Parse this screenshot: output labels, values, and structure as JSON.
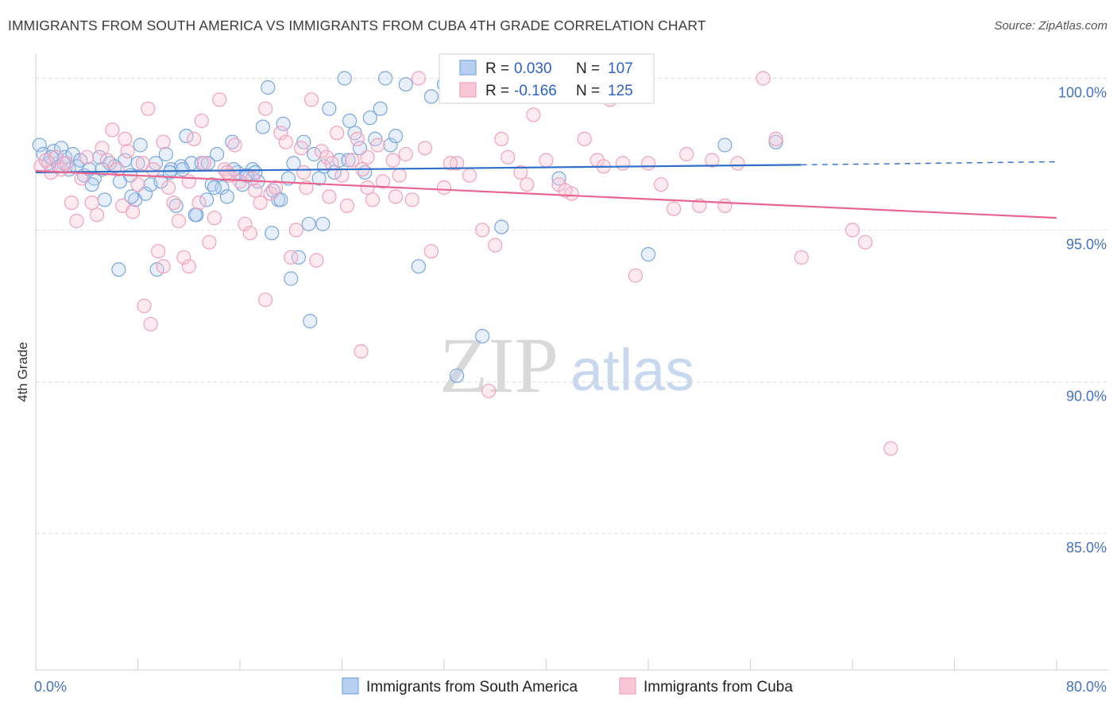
{
  "header": {
    "title": "IMMIGRANTS FROM SOUTH AMERICA VS IMMIGRANTS FROM CUBA 4TH GRADE CORRELATION CHART",
    "source": "Source: ZipAtlas.com"
  },
  "watermark": {
    "zip": "ZIP",
    "atlas": "atlas"
  },
  "chart_data": {
    "type": "scatter",
    "ylabel": "4th Grade",
    "xlim": [
      0,
      80
    ],
    "ylim": [
      80.5,
      100.8
    ],
    "x_tick_labels": [
      "0.0%",
      "80.0%"
    ],
    "y_ticks": [
      {
        "value": 100,
        "label": "100.0%"
      },
      {
        "value": 95,
        "label": "95.0%"
      },
      {
        "value": 90,
        "label": "90.0%"
      },
      {
        "value": 85,
        "label": "85.0%"
      }
    ],
    "grid": "horizontal-dashed",
    "legend_position": "top-center",
    "series": [
      {
        "name": "Immigrants from South America",
        "color": "#7aa7e0",
        "line_color": "#2f6ec9",
        "stats": {
          "r_label": "R =",
          "r": "0.030",
          "n_label": "N =",
          "n": "107"
        },
        "trend": {
          "x_start": 0,
          "y_start": 96.9,
          "x_solid_end": 60,
          "y_solid_end": 97.15,
          "x_end": 80,
          "y_end": 97.25
        },
        "points": [
          [
            0.3,
            97.8
          ],
          [
            0.6,
            97.5
          ],
          [
            1.0,
            97.2
          ],
          [
            1.4,
            97.6
          ],
          [
            1.8,
            97.1
          ],
          [
            2.0,
            97.7
          ],
          [
            2.3,
            97.4
          ],
          [
            2.6,
            97.0
          ],
          [
            2.9,
            97.5
          ],
          [
            3.2,
            97.1
          ],
          [
            3.5,
            97.3
          ],
          [
            3.8,
            96.8
          ],
          [
            4.2,
            97.0
          ],
          [
            4.6,
            96.7
          ],
          [
            5.0,
            97.4
          ],
          [
            5.4,
            96.0
          ],
          [
            5.8,
            97.2
          ],
          [
            6.2,
            97.1
          ],
          [
            6.6,
            96.6
          ],
          [
            7.0,
            97.3
          ],
          [
            7.4,
            96.8
          ],
          [
            7.8,
            96.0
          ],
          [
            8.2,
            97.8
          ],
          [
            8.6,
            96.2
          ],
          [
            9.0,
            96.5
          ],
          [
            9.4,
            97.2
          ],
          [
            9.8,
            96.6
          ],
          [
            10.2,
            97.5
          ],
          [
            10.6,
            97.0
          ],
          [
            11.0,
            95.8
          ],
          [
            11.4,
            97.1
          ],
          [
            11.8,
            98.1
          ],
          [
            12.2,
            97.2
          ],
          [
            12.6,
            95.5
          ],
          [
            13.0,
            97.2
          ],
          [
            13.4,
            96.0
          ],
          [
            13.8,
            96.5
          ],
          [
            14.2,
            97.5
          ],
          [
            14.6,
            96.4
          ],
          [
            15.0,
            96.1
          ],
          [
            15.4,
            97.9
          ],
          [
            15.8,
            96.9
          ],
          [
            16.2,
            96.5
          ],
          [
            16.6,
            96.8
          ],
          [
            17.0,
            97.0
          ],
          [
            17.4,
            96.6
          ],
          [
            17.8,
            98.4
          ],
          [
            18.2,
            99.7
          ],
          [
            18.6,
            96.3
          ],
          [
            19.0,
            96.0
          ],
          [
            19.4,
            98.5
          ],
          [
            19.8,
            96.7
          ],
          [
            20.2,
            97.2
          ],
          [
            20.6,
            94.1
          ],
          [
            21.0,
            97.9
          ],
          [
            21.4,
            95.2
          ],
          [
            21.8,
            97.5
          ],
          [
            22.2,
            96.7
          ],
          [
            22.6,
            97.1
          ],
          [
            23.0,
            99.0
          ],
          [
            23.4,
            96.9
          ],
          [
            23.8,
            97.3
          ],
          [
            24.2,
            100.0
          ],
          [
            24.6,
            98.6
          ],
          [
            25.0,
            98.2
          ],
          [
            25.4,
            97.7
          ],
          [
            25.8,
            96.9
          ],
          [
            26.2,
            98.7
          ],
          [
            26.6,
            98.0
          ],
          [
            27.0,
            99.0
          ],
          [
            27.4,
            100.0
          ],
          [
            27.8,
            97.8
          ],
          [
            28.2,
            98.1
          ],
          [
            29.0,
            99.8
          ],
          [
            30.0,
            93.8
          ],
          [
            31.0,
            99.4
          ],
          [
            32.0,
            99.8
          ],
          [
            33.0,
            90.2
          ],
          [
            34.0,
            99.6
          ],
          [
            35.0,
            91.5
          ],
          [
            36.5,
            95.1
          ],
          [
            41.0,
            96.7
          ],
          [
            48.0,
            94.2
          ],
          [
            54.0,
            97.8
          ],
          [
            58.0,
            97.9
          ],
          [
            6.5,
            93.7
          ],
          [
            12.5,
            95.5
          ],
          [
            18.5,
            94.9
          ],
          [
            20.0,
            93.4
          ],
          [
            21.5,
            92.0
          ],
          [
            9.5,
            93.7
          ],
          [
            15.5,
            97.0
          ],
          [
            19.2,
            96.0
          ],
          [
            22.5,
            95.2
          ],
          [
            24.5,
            97.3
          ],
          [
            16.5,
            96.8
          ],
          [
            13.5,
            97.2
          ],
          [
            7.5,
            96.1
          ],
          [
            10.5,
            96.9
          ],
          [
            4.4,
            96.5
          ],
          [
            2.2,
            97.2
          ],
          [
            1.2,
            97.4
          ],
          [
            5.2,
            97.0
          ],
          [
            8.0,
            97.2
          ],
          [
            11.5,
            97.0
          ],
          [
            14.0,
            96.4
          ],
          [
            17.2,
            96.9
          ]
        ]
      },
      {
        "name": "Immigrants from Cuba",
        "color": "#f2a1bb",
        "line_color": "#e8658f",
        "stats": {
          "r_label": "R =",
          "r": "-0.166",
          "n_label": "N =",
          "n": "125"
        },
        "trend": {
          "x_start": 0,
          "y_start": 96.95,
          "x_end": 80,
          "y_end": 95.4
        },
        "points": [
          [
            0.4,
            97.1
          ],
          [
            0.8,
            97.3
          ],
          [
            1.2,
            96.9
          ],
          [
            1.6,
            97.4
          ],
          [
            2.0,
            97.0
          ],
          [
            2.4,
            97.2
          ],
          [
            2.8,
            95.9
          ],
          [
            3.2,
            95.3
          ],
          [
            3.6,
            96.7
          ],
          [
            4.0,
            97.4
          ],
          [
            4.4,
            95.9
          ],
          [
            4.8,
            95.5
          ],
          [
            5.2,
            97.7
          ],
          [
            5.6,
            97.3
          ],
          [
            6.0,
            98.3
          ],
          [
            6.4,
            97.0
          ],
          [
            6.8,
            95.8
          ],
          [
            7.2,
            97.6
          ],
          [
            7.6,
            95.6
          ],
          [
            8.0,
            96.5
          ],
          [
            8.4,
            97.2
          ],
          [
            8.8,
            99.0
          ],
          [
            9.2,
            97.0
          ],
          [
            9.6,
            94.3
          ],
          [
            10.0,
            97.9
          ],
          [
            10.4,
            96.4
          ],
          [
            10.8,
            95.9
          ],
          [
            11.2,
            95.3
          ],
          [
            11.6,
            94.1
          ],
          [
            12.0,
            96.6
          ],
          [
            12.4,
            98.0
          ],
          [
            12.8,
            95.9
          ],
          [
            13.2,
            97.2
          ],
          [
            13.6,
            94.6
          ],
          [
            14.0,
            95.4
          ],
          [
            14.4,
            99.3
          ],
          [
            14.8,
            97.0
          ],
          [
            15.2,
            96.8
          ],
          [
            15.6,
            97.8
          ],
          [
            16.0,
            96.6
          ],
          [
            16.4,
            95.2
          ],
          [
            16.8,
            94.9
          ],
          [
            17.2,
            96.3
          ],
          [
            17.6,
            95.9
          ],
          [
            18.0,
            99.0
          ],
          [
            18.4,
            96.2
          ],
          [
            18.8,
            96.4
          ],
          [
            19.2,
            98.2
          ],
          [
            19.6,
            97.9
          ],
          [
            20.0,
            94.1
          ],
          [
            20.4,
            95.0
          ],
          [
            20.8,
            97.7
          ],
          [
            21.2,
            96.4
          ],
          [
            21.6,
            99.3
          ],
          [
            22.0,
            94.0
          ],
          [
            22.4,
            97.6
          ],
          [
            22.8,
            97.4
          ],
          [
            23.2,
            97.2
          ],
          [
            23.6,
            98.2
          ],
          [
            24.0,
            96.8
          ],
          [
            24.4,
            95.8
          ],
          [
            24.8,
            97.3
          ],
          [
            25.2,
            98.0
          ],
          [
            25.6,
            97.0
          ],
          [
            26.0,
            96.4
          ],
          [
            26.4,
            96.0
          ],
          [
            26.8,
            97.8
          ],
          [
            27.2,
            96.6
          ],
          [
            28.0,
            97.3
          ],
          [
            28.5,
            96.8
          ],
          [
            29.0,
            97.5
          ],
          [
            29.5,
            96.0
          ],
          [
            30.0,
            100.0
          ],
          [
            31.0,
            94.3
          ],
          [
            32.0,
            96.4
          ],
          [
            33.0,
            97.2
          ],
          [
            34.0,
            96.8
          ],
          [
            35.0,
            95.0
          ],
          [
            36.0,
            94.5
          ],
          [
            37.0,
            97.4
          ],
          [
            38.0,
            96.9
          ],
          [
            39.0,
            98.8
          ],
          [
            40.0,
            97.3
          ],
          [
            41.0,
            96.5
          ],
          [
            42.0,
            96.2
          ],
          [
            43.0,
            98.0
          ],
          [
            44.0,
            97.3
          ],
          [
            45.0,
            99.3
          ],
          [
            46.0,
            97.2
          ],
          [
            47.0,
            93.5
          ],
          [
            48.0,
            97.2
          ],
          [
            49.0,
            96.5
          ],
          [
            50.0,
            95.7
          ],
          [
            51.0,
            97.5
          ],
          [
            52.0,
            95.8
          ],
          [
            53.0,
            97.3
          ],
          [
            54.0,
            95.8
          ],
          [
            55.0,
            97.2
          ],
          [
            57.0,
            100.0
          ],
          [
            58.0,
            98.0
          ],
          [
            60.0,
            94.1
          ],
          [
            64.0,
            95.0
          ],
          [
            65.0,
            94.6
          ],
          [
            67.0,
            87.8
          ],
          [
            8.5,
            92.5
          ],
          [
            9.0,
            91.9
          ],
          [
            18.0,
            92.7
          ],
          [
            25.5,
            91.0
          ],
          [
            35.5,
            89.7
          ],
          [
            12.0,
            93.8
          ],
          [
            10.0,
            93.8
          ],
          [
            17.0,
            96.7
          ],
          [
            21.0,
            96.9
          ],
          [
            23.0,
            96.1
          ],
          [
            26.0,
            97.4
          ],
          [
            28.2,
            96.1
          ],
          [
            30.5,
            97.7
          ],
          [
            32.5,
            97.2
          ],
          [
            36.5,
            98.0
          ],
          [
            38.5,
            96.5
          ],
          [
            41.5,
            96.3
          ],
          [
            44.5,
            97.1
          ],
          [
            7.0,
            98.0
          ],
          [
            13.0,
            98.6
          ],
          [
            15.0,
            96.9
          ]
        ]
      }
    ]
  }
}
